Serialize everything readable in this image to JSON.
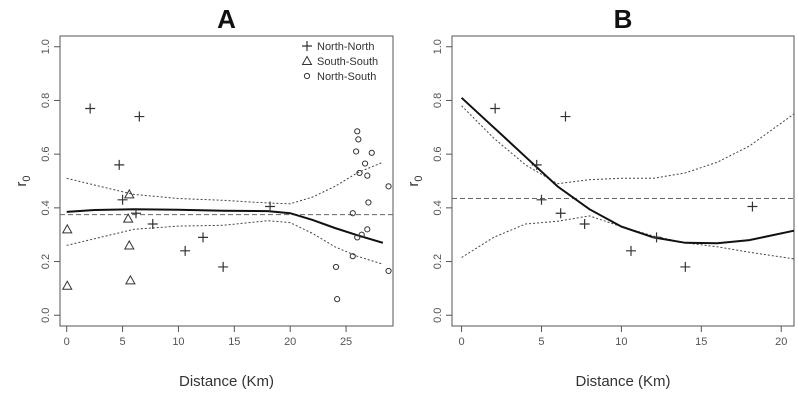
{
  "chart_data": [
    {
      "type": "scatter",
      "panel_label": "A",
      "xlabel": "Distance (Km)",
      "ylabel": "r0",
      "xlim": [
        -0.6,
        29.2
      ],
      "ylim": [
        -0.04,
        1.04
      ],
      "xticks": [
        0,
        5,
        10,
        15,
        20,
        25
      ],
      "yticks": [
        0.0,
        0.2,
        0.4,
        0.6,
        0.8,
        1.0
      ],
      "grid": false,
      "legend_position": "top-right",
      "reference_line": 0.375,
      "series": [
        {
          "name": "North-North",
          "marker": "plus",
          "points": [
            [
              2.1,
              0.77
            ],
            [
              4.7,
              0.56
            ],
            [
              6.5,
              0.74
            ],
            [
              5.0,
              0.43
            ],
            [
              6.2,
              0.38
            ],
            [
              7.7,
              0.34
            ],
            [
              10.6,
              0.24
            ],
            [
              12.2,
              0.29
            ],
            [
              14.0,
              0.18
            ],
            [
              18.2,
              0.405
            ]
          ]
        },
        {
          "name": "South-South",
          "marker": "triangle",
          "points": [
            [
              0.05,
              0.32
            ],
            [
              0.05,
              0.11
            ],
            [
              5.6,
              0.45
            ],
            [
              5.5,
              0.36
            ],
            [
              5.6,
              0.26
            ],
            [
              5.7,
              0.13
            ]
          ]
        },
        {
          "name": "North-South",
          "marker": "circle",
          "points": [
            [
              26.0,
              0.685
            ],
            [
              26.1,
              0.655
            ],
            [
              25.9,
              0.61
            ],
            [
              26.7,
              0.565
            ],
            [
              26.2,
              0.53
            ],
            [
              27.3,
              0.605
            ],
            [
              26.9,
              0.52
            ],
            [
              28.8,
              0.48
            ],
            [
              27.0,
              0.42
            ],
            [
              25.6,
              0.38
            ],
            [
              26.9,
              0.32
            ],
            [
              26.4,
              0.3
            ],
            [
              26.0,
              0.29
            ],
            [
              25.6,
              0.22
            ],
            [
              24.1,
              0.18
            ],
            [
              24.2,
              0.06
            ],
            [
              28.8,
              0.165
            ]
          ]
        }
      ],
      "fit_line": [
        [
          0,
          0.385
        ],
        [
          2.5,
          0.392
        ],
        [
          6,
          0.395
        ],
        [
          10,
          0.393
        ],
        [
          14,
          0.389
        ],
        [
          18,
          0.388
        ],
        [
          20,
          0.38
        ],
        [
          22,
          0.355
        ],
        [
          24,
          0.325
        ],
        [
          26,
          0.298
        ],
        [
          28.3,
          0.27
        ]
      ],
      "ci_upper": [
        [
          0,
          0.51
        ],
        [
          3,
          0.48
        ],
        [
          6,
          0.45
        ],
        [
          10,
          0.435
        ],
        [
          14,
          0.428
        ],
        [
          18,
          0.418
        ],
        [
          20,
          0.415
        ],
        [
          22,
          0.44
        ],
        [
          24,
          0.48
        ],
        [
          26,
          0.53
        ],
        [
          28.3,
          0.57
        ]
      ],
      "ci_lower": [
        [
          0,
          0.26
        ],
        [
          3,
          0.29
        ],
        [
          6,
          0.32
        ],
        [
          10,
          0.332
        ],
        [
          14,
          0.335
        ],
        [
          18,
          0.352
        ],
        [
          20,
          0.345
        ],
        [
          22,
          0.305
        ],
        [
          24,
          0.255
        ],
        [
          26,
          0.22
        ],
        [
          28.3,
          0.19
        ]
      ]
    },
    {
      "type": "scatter",
      "panel_label": "B",
      "xlabel": "Distance (Km)",
      "ylabel": "r0",
      "xlim": [
        -0.6,
        20.8
      ],
      "ylim": [
        -0.04,
        1.04
      ],
      "xticks": [
        0,
        5,
        10,
        15,
        20
      ],
      "yticks": [
        0.0,
        0.2,
        0.4,
        0.6,
        0.8,
        1.0
      ],
      "grid": false,
      "reference_line": 0.435,
      "series": [
        {
          "name": "North-North",
          "marker": "plus",
          "points": [
            [
              2.1,
              0.77
            ],
            [
              4.7,
              0.56
            ],
            [
              6.5,
              0.74
            ],
            [
              5.0,
              0.43
            ],
            [
              6.2,
              0.38
            ],
            [
              7.7,
              0.34
            ],
            [
              10.6,
              0.24
            ],
            [
              12.2,
              0.29
            ],
            [
              14.0,
              0.18
            ],
            [
              18.2,
              0.405
            ]
          ]
        }
      ],
      "fit_line": [
        [
          0,
          0.81
        ],
        [
          2,
          0.7
        ],
        [
          4,
          0.59
        ],
        [
          6,
          0.48
        ],
        [
          8,
          0.395
        ],
        [
          10,
          0.33
        ],
        [
          12,
          0.29
        ],
        [
          14,
          0.27
        ],
        [
          16,
          0.268
        ],
        [
          18,
          0.28
        ],
        [
          20.8,
          0.315
        ]
      ],
      "ci_upper": [
        [
          0,
          0.78
        ],
        [
          2,
          0.66
        ],
        [
          4,
          0.56
        ],
        [
          6,
          0.49
        ],
        [
          8,
          0.505
        ],
        [
          10,
          0.51
        ],
        [
          12,
          0.51
        ],
        [
          14,
          0.53
        ],
        [
          16,
          0.57
        ],
        [
          18,
          0.63
        ],
        [
          20.8,
          0.75
        ]
      ],
      "ci_lower": [
        [
          0,
          0.215
        ],
        [
          2,
          0.29
        ],
        [
          4,
          0.34
        ],
        [
          6,
          0.35
        ],
        [
          8,
          0.37
        ],
        [
          10,
          0.33
        ],
        [
          12,
          0.295
        ],
        [
          14,
          0.27
        ],
        [
          16,
          0.255
        ],
        [
          18,
          0.235
        ],
        [
          20.8,
          0.21
        ]
      ]
    }
  ]
}
